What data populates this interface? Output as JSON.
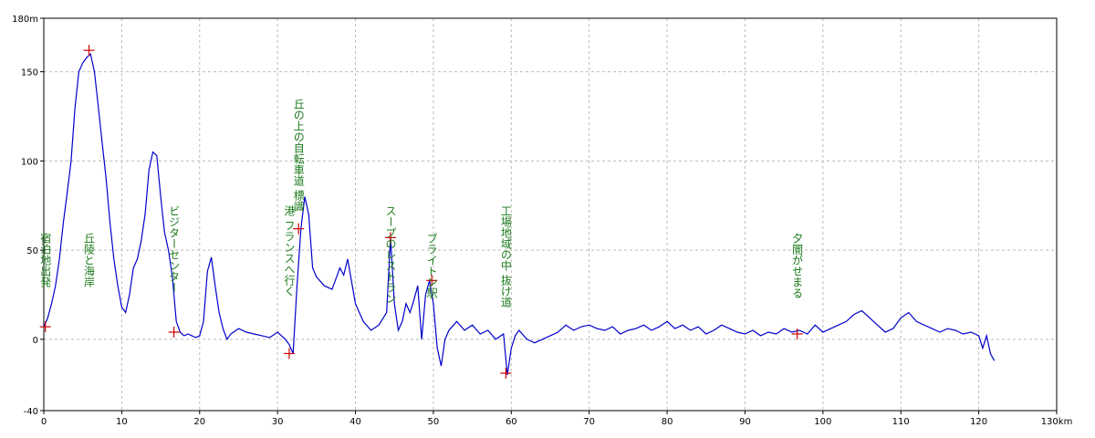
{
  "chart_data": {
    "type": "line",
    "title": "",
    "xlabel": "",
    "ylabel": "",
    "x_unit": "km",
    "y_unit": "m",
    "xlim": [
      0,
      130
    ],
    "ylim": [
      -40,
      180
    ],
    "x_ticks": [
      "0",
      "10",
      "20",
      "30",
      "40",
      "50",
      "60",
      "70",
      "80",
      "90",
      "100",
      "110",
      "120",
      "130km"
    ],
    "y_ticks": [
      "-40",
      "0",
      "50",
      "100",
      "150",
      "180m"
    ],
    "x_tick_values": [
      0,
      10,
      20,
      30,
      40,
      50,
      60,
      70,
      80,
      90,
      100,
      110,
      120,
      130
    ],
    "y_tick_values": [
      -40,
      0,
      50,
      100,
      150,
      180
    ],
    "grid": true,
    "line_color": "#0000cc",
    "marker_color": "#cc0000",
    "annotation_color": "#1a7a1a",
    "series": [
      {
        "x": [
          0,
          0.5,
          1,
          1.5,
          2,
          2.5,
          3,
          3.5,
          4,
          4.5,
          5,
          5.5,
          6,
          6.5,
          7,
          7.5,
          8,
          8.5,
          9,
          9.5,
          10,
          10.5,
          11,
          11.5,
          12,
          12.5,
          13,
          13.5,
          14,
          14.5,
          15,
          15.5,
          16,
          16.5,
          17,
          17.5,
          18,
          18.5,
          19,
          19.5,
          20,
          20.5,
          21,
          21.5,
          22,
          22.5,
          23,
          23.5,
          24,
          25,
          26,
          27,
          28,
          29,
          30,
          30.5,
          31,
          31.5,
          32,
          32.5,
          33,
          33.5,
          34,
          34.5,
          35,
          36,
          37,
          38,
          38.5,
          39,
          40,
          41,
          42,
          43,
          44,
          44.5,
          45,
          45.5,
          46,
          46.5,
          47,
          47.5,
          48,
          48.5,
          49,
          49.5,
          50,
          50.5,
          51,
          51.5,
          52,
          53,
          54,
          55,
          56,
          57,
          58,
          59,
          59.5,
          60,
          60.5,
          61,
          62,
          63,
          64,
          65,
          66,
          67,
          68,
          69,
          70,
          71,
          72,
          73,
          74,
          75,
          76,
          77,
          78,
          79,
          80,
          81,
          82,
          83,
          84,
          85,
          86,
          87,
          88,
          89,
          90,
          91,
          92,
          93,
          94,
          95,
          96,
          97,
          98,
          99,
          100,
          101,
          102,
          103,
          104,
          105,
          106,
          107,
          108,
          109,
          110,
          111,
          112,
          113,
          114,
          115,
          116,
          117,
          118,
          119,
          120,
          120.5,
          121,
          121.5,
          122
        ],
        "y": [
          7,
          12,
          20,
          30,
          45,
          65,
          82,
          100,
          130,
          150,
          155,
          158,
          160,
          150,
          130,
          110,
          90,
          65,
          45,
          30,
          18,
          15,
          25,
          40,
          45,
          55,
          70,
          95,
          105,
          103,
          80,
          60,
          50,
          35,
          10,
          4,
          2,
          3,
          2,
          1,
          2,
          10,
          38,
          46,
          30,
          15,
          6,
          0,
          3,
          6,
          4,
          3,
          2,
          1,
          4,
          2,
          0,
          -3,
          -8,
          30,
          62,
          80,
          70,
          40,
          35,
          30,
          28,
          40,
          36,
          45,
          20,
          10,
          5,
          8,
          15,
          57,
          20,
          5,
          10,
          20,
          15,
          22,
          30,
          0,
          25,
          33,
          20,
          -5,
          -15,
          0,
          5,
          10,
          5,
          8,
          3,
          5,
          0,
          3,
          -20,
          -5,
          2,
          5,
          0,
          -2,
          0,
          2,
          4,
          8,
          5,
          7,
          8,
          6,
          5,
          7,
          3,
          5,
          6,
          8,
          5,
          7,
          10,
          6,
          8,
          5,
          7,
          3,
          5,
          8,
          6,
          4,
          3,
          5,
          2,
          4,
          3,
          6,
          4,
          5,
          3,
          8,
          4,
          6,
          8,
          10,
          14,
          16,
          12,
          8,
          4,
          6,
          12,
          15,
          10,
          8,
          6,
          4,
          6,
          5,
          3,
          4,
          2,
          -5,
          2,
          -8,
          -12
        ],
        "color": "#0000cc"
      }
    ],
    "markers": [
      {
        "x": 0.2,
        "y": 7
      },
      {
        "x": 5.8,
        "y": 162
      },
      {
        "x": 16.7,
        "y": 4
      },
      {
        "x": 31.5,
        "y": -8
      },
      {
        "x": 32.7,
        "y": 62
      },
      {
        "x": 44.5,
        "y": 57
      },
      {
        "x": 49.8,
        "y": 33
      },
      {
        "x": 59.3,
        "y": -19
      },
      {
        "x": 96.7,
        "y": 3
      }
    ],
    "annotations": [
      {
        "text": "宿泊地出発",
        "x": 0.2
      },
      {
        "text": "丘陵と海岸",
        "x": 5.8
      },
      {
        "text": "ビジターセンター",
        "x": 16.7
      },
      {
        "text": "港 フランスへ行く",
        "x": 31.5
      },
      {
        "text": "丘の上の自転車道 標識",
        "x": 32.7
      },
      {
        "text": "スープのレストラン",
        "x": 44.5
      },
      {
        "text": "ブライトン駅",
        "x": 49.8
      },
      {
        "text": "工場地域の中 抜け道",
        "x": 59.3
      },
      {
        "text": "夕闇がせまる",
        "x": 96.7
      }
    ]
  }
}
